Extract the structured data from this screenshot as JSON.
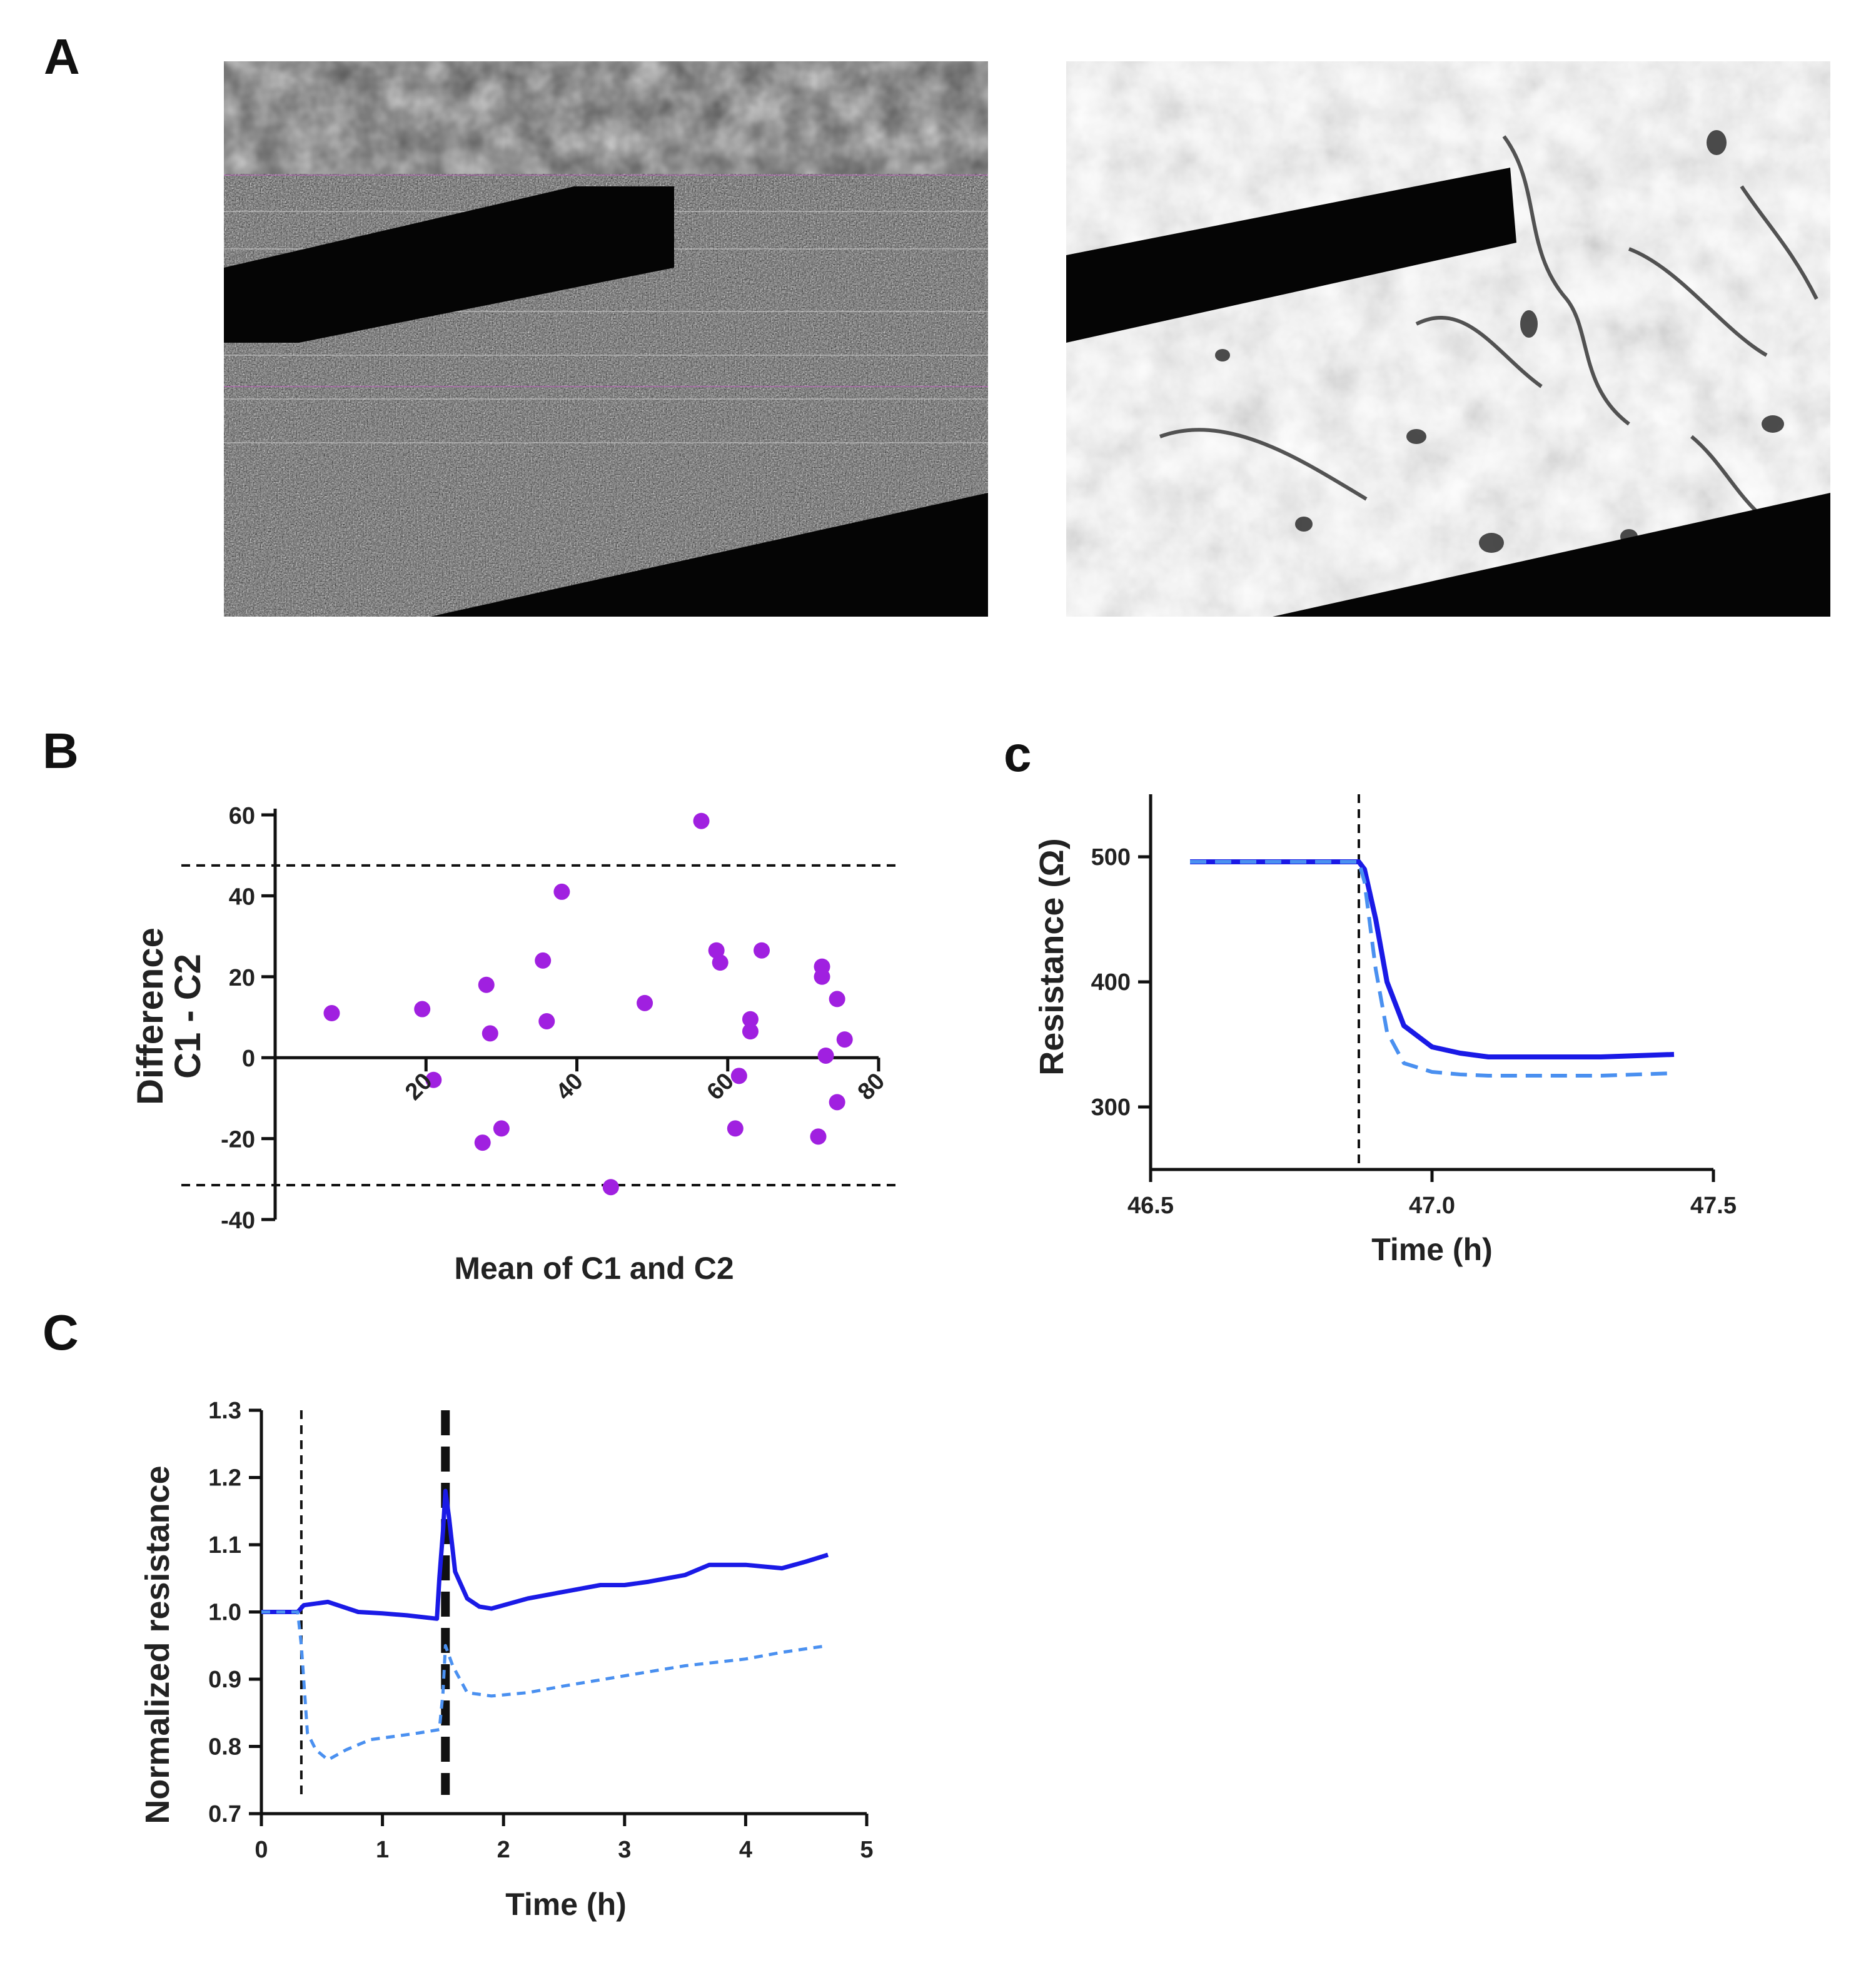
{
  "panels": {
    "A": "A",
    "B": "B",
    "c": "c",
    "C": "C"
  },
  "micrographs": [
    {
      "style": "grayscale phase-contrast micrograph with horizontal scan-line artifacts, black electrode bars"
    },
    {
      "style": "grayscale phase-contrast micrograph with cells, black electrode bars"
    }
  ],
  "colors": {
    "scatter": "#a020e0",
    "solid_line": "#1a1ae6",
    "dashed_line": "#4a90f0",
    "reference": "#111111"
  },
  "chart_data": [
    {
      "panel": "B",
      "type": "scatter",
      "xlabel": "Mean of C1 and C2",
      "ylabel": "Difference",
      "ylabel2": "C1 - C2",
      "xlim": [
        0,
        80
      ],
      "ylim": [
        -40,
        60
      ],
      "xticks": [
        20,
        40,
        60,
        80
      ],
      "yticks": [
        -40,
        -20,
        0,
        20,
        40,
        60
      ],
      "hlines": [
        47.5,
        -31.5
      ],
      "points": [
        {
          "x": 7.5,
          "y": 11
        },
        {
          "x": 19.5,
          "y": 12
        },
        {
          "x": 21,
          "y": -5.5
        },
        {
          "x": 28,
          "y": 18
        },
        {
          "x": 28.5,
          "y": 6
        },
        {
          "x": 27.5,
          "y": -21
        },
        {
          "x": 30,
          "y": -17.5
        },
        {
          "x": 35.5,
          "y": 24
        },
        {
          "x": 36,
          "y": 9
        },
        {
          "x": 38,
          "y": 41
        },
        {
          "x": 44.5,
          "y": -32
        },
        {
          "x": 49,
          "y": 13.5
        },
        {
          "x": 56.5,
          "y": 58.5
        },
        {
          "x": 58.5,
          "y": 26.5
        },
        {
          "x": 59,
          "y": 23.5
        },
        {
          "x": 61.5,
          "y": -4.5
        },
        {
          "x": 61,
          "y": -17.5
        },
        {
          "x": 63,
          "y": 9.5
        },
        {
          "x": 63,
          "y": 6.5
        },
        {
          "x": 64.5,
          "y": 26.5
        },
        {
          "x": 72.5,
          "y": 22.5
        },
        {
          "x": 72.5,
          "y": 20
        },
        {
          "x": 73,
          "y": 0.5
        },
        {
          "x": 74.5,
          "y": 14.5
        },
        {
          "x": 75.5,
          "y": 4.5
        },
        {
          "x": 72,
          "y": -19.5
        },
        {
          "x": 74.5,
          "y": -11
        }
      ]
    },
    {
      "panel": "c",
      "type": "line",
      "xlabel": "Time (h)",
      "ylabel": "Resistance (Ω)",
      "xlim": [
        46.5,
        47.5
      ],
      "ylim": [
        250,
        550
      ],
      "xticks": [
        46.5,
        47.0,
        47.5
      ],
      "xtick_labels": [
        "46.5",
        "47.0",
        "47.5"
      ],
      "yticks": [
        300,
        400,
        500
      ],
      "vline": 46.87,
      "series": [
        {
          "style": "solid",
          "x": [
            46.57,
            46.87,
            46.88,
            46.9,
            46.92,
            46.95,
            47.0,
            47.05,
            47.1,
            47.2,
            47.3,
            47.43
          ],
          "y": [
            496,
            496,
            490,
            450,
            400,
            365,
            348,
            343,
            340,
            340,
            340,
            342
          ]
        },
        {
          "style": "dashed",
          "x": [
            46.57,
            46.87,
            46.88,
            46.9,
            46.92,
            46.95,
            47.0,
            47.05,
            47.1,
            47.2,
            47.3,
            47.43
          ],
          "y": [
            496,
            496,
            480,
            410,
            360,
            335,
            328,
            326,
            325,
            325,
            325,
            327
          ]
        }
      ]
    },
    {
      "panel": "C",
      "type": "line",
      "xlabel": "Time (h)",
      "ylabel": "Normalized resistance",
      "xlim": [
        0,
        5
      ],
      "ylim": [
        0.7,
        1.3
      ],
      "xticks": [
        0,
        1,
        2,
        3,
        4,
        5
      ],
      "yticks": [
        0.7,
        0.8,
        0.9,
        1.0,
        1.1,
        1.2,
        1.3
      ],
      "ytick_labels": [
        "0.7",
        "0.8",
        "0.9",
        "1.0",
        "1.1",
        "1.2",
        "1.3"
      ],
      "vlines": [
        {
          "x": 0.33,
          "style": "thin"
        },
        {
          "x": 1.52,
          "style": "thick"
        }
      ],
      "series": [
        {
          "style": "solid",
          "x": [
            0,
            0.3,
            0.35,
            0.55,
            0.8,
            1.0,
            1.2,
            1.45,
            1.47,
            1.5,
            1.52,
            1.55,
            1.6,
            1.7,
            1.8,
            1.9,
            2.0,
            2.2,
            2.5,
            2.8,
            3.0,
            3.2,
            3.5,
            3.7,
            4.0,
            4.3,
            4.5,
            4.68
          ],
          "y": [
            1.0,
            1.0,
            1.01,
            1.015,
            1.0,
            0.998,
            0.995,
            0.99,
            1.05,
            1.12,
            1.18,
            1.14,
            1.06,
            1.02,
            1.008,
            1.005,
            1.01,
            1.02,
            1.03,
            1.04,
            1.04,
            1.045,
            1.055,
            1.07,
            1.07,
            1.065,
            1.075,
            1.085
          ]
        },
        {
          "style": "dashed",
          "x": [
            0,
            0.3,
            0.33,
            0.38,
            0.45,
            0.55,
            0.7,
            0.9,
            1.1,
            1.3,
            1.47,
            1.5,
            1.52,
            1.58,
            1.7,
            1.9,
            2.2,
            2.5,
            3.0,
            3.5,
            4.0,
            4.3,
            4.68
          ],
          "y": [
            1.0,
            1.0,
            0.95,
            0.82,
            0.795,
            0.78,
            0.795,
            0.81,
            0.815,
            0.82,
            0.825,
            0.88,
            0.95,
            0.92,
            0.88,
            0.875,
            0.88,
            0.89,
            0.905,
            0.92,
            0.93,
            0.94,
            0.95
          ]
        }
      ]
    }
  ]
}
